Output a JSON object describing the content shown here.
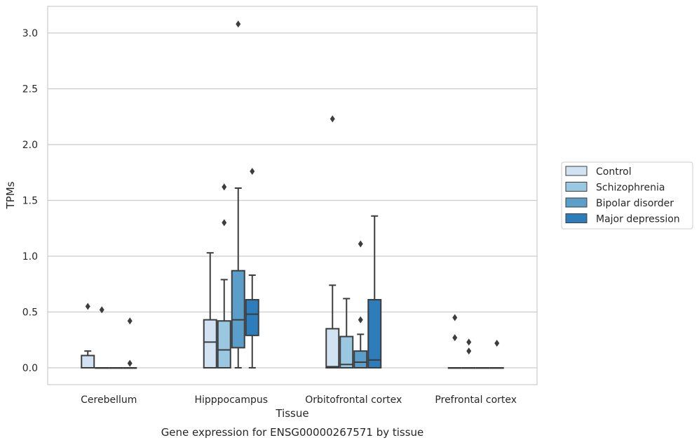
{
  "chart_data": {
    "type": "box",
    "caption": "Gene expression for ENSG00000267571 by tissue",
    "xlabel": "Tissue",
    "ylabel": "TPMs",
    "ylim": [
      -0.15,
      3.23
    ],
    "yticks": [
      "0.0",
      "0.5",
      "1.0",
      "1.5",
      "2.0",
      "2.5",
      "3.0"
    ],
    "grid": true,
    "legend_position": "right",
    "categories": [
      "Cerebellum",
      "Hipppocampus",
      "Orbitofrontal cortex",
      "Prefrontal cortex"
    ],
    "series": [
      {
        "name": "Control",
        "color": "#d1e2f2",
        "boxes": [
          {
            "q1": 0.0,
            "median": 0.0,
            "q3": 0.11,
            "whislo": 0.0,
            "whishi": 0.15,
            "fliers": [
              0.55
            ]
          },
          {
            "q1": 0.0,
            "median": 0.23,
            "q3": 0.43,
            "whislo": 0.0,
            "whishi": 1.03,
            "fliers": []
          },
          {
            "q1": 0.0,
            "median": 0.01,
            "q3": 0.35,
            "whislo": 0.0,
            "whishi": 0.74,
            "fliers": [
              2.23
            ]
          },
          {
            "q1": 0.0,
            "median": 0.0,
            "q3": 0.0,
            "whislo": 0.0,
            "whishi": 0.0,
            "fliers": [
              0.45,
              0.27
            ]
          }
        ]
      },
      {
        "name": "Schizophrenia",
        "color": "#9ac8e0",
        "boxes": [
          {
            "q1": 0.0,
            "median": 0.0,
            "q3": 0.0,
            "whislo": 0.0,
            "whishi": 0.0,
            "fliers": [
              0.52
            ]
          },
          {
            "q1": 0.0,
            "median": 0.16,
            "q3": 0.42,
            "whislo": 0.0,
            "whishi": 0.79,
            "fliers": [
              1.62,
              1.3
            ]
          },
          {
            "q1": 0.0,
            "median": 0.03,
            "q3": 0.28,
            "whislo": 0.0,
            "whishi": 0.62,
            "fliers": []
          },
          {
            "q1": 0.0,
            "median": 0.0,
            "q3": 0.0,
            "whislo": 0.0,
            "whishi": 0.0,
            "fliers": [
              0.23,
              0.15
            ]
          }
        ]
      },
      {
        "name": "Bipolar disorder",
        "color": "#5a9ec9",
        "boxes": [
          {
            "q1": 0.0,
            "median": 0.0,
            "q3": 0.0,
            "whislo": 0.0,
            "whishi": 0.0,
            "fliers": []
          },
          {
            "q1": 0.18,
            "median": 0.43,
            "q3": 0.87,
            "whislo": 0.0,
            "whishi": 1.61,
            "fliers": [
              3.08
            ]
          },
          {
            "q1": 0.0,
            "median": 0.05,
            "q3": 0.15,
            "whislo": 0.0,
            "whishi": 0.3,
            "fliers": [
              1.11,
              0.43
            ]
          },
          {
            "q1": 0.0,
            "median": 0.0,
            "q3": 0.0,
            "whislo": 0.0,
            "whishi": 0.0,
            "fliers": []
          }
        ]
      },
      {
        "name": "Major depression",
        "color": "#2d7dbb",
        "boxes": [
          {
            "q1": 0.0,
            "median": 0.0,
            "q3": 0.0,
            "whislo": 0.0,
            "whishi": 0.0,
            "fliers": [
              0.42,
              0.04
            ]
          },
          {
            "q1": 0.29,
            "median": 0.48,
            "q3": 0.61,
            "whislo": 0.0,
            "whishi": 0.83,
            "fliers": [
              1.76
            ]
          },
          {
            "q1": 0.0,
            "median": 0.07,
            "q3": 0.61,
            "whislo": 0.0,
            "whishi": 1.36,
            "fliers": []
          },
          {
            "q1": 0.0,
            "median": 0.0,
            "q3": 0.0,
            "whislo": 0.0,
            "whishi": 0.0,
            "fliers": [
              0.22
            ]
          }
        ]
      }
    ]
  }
}
